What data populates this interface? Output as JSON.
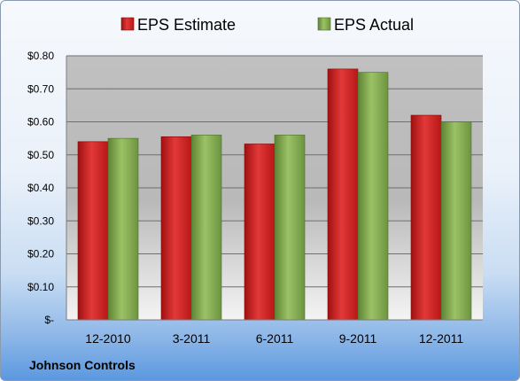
{
  "chart_data": {
    "type": "bar",
    "categories": [
      "12-2010",
      "3-2011",
      "6-2011",
      "9-2011",
      "12-2011"
    ],
    "series": [
      {
        "name": "EPS Estimate",
        "values": [
          0.54,
          0.555,
          0.533,
          0.76,
          0.62
        ],
        "color": "#cc1f1f"
      },
      {
        "name": "EPS Actual",
        "values": [
          0.55,
          0.56,
          0.56,
          0.75,
          0.6
        ],
        "color": "#7fa64a"
      }
    ],
    "yticks": [
      "$-",
      "$0.10",
      "$0.20",
      "$0.30",
      "$0.40",
      "$0.50",
      "$0.60",
      "$0.70",
      "$0.80"
    ],
    "ylim": [
      0,
      0.8
    ],
    "grid": true,
    "legend_position": "top-center",
    "footer": "Johnson Controls"
  }
}
